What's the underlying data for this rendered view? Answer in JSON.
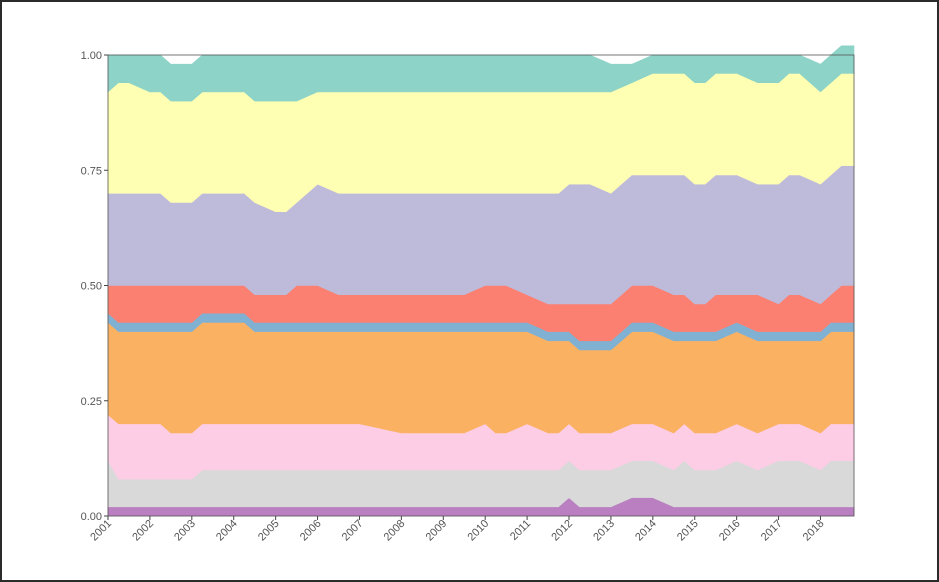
{
  "chart_data": {
    "type": "area",
    "stacked": true,
    "normalized": true,
    "xlabel": "",
    "ylabel": "",
    "title": "",
    "grid": false,
    "legend": "none",
    "x": [
      2001.0,
      2001.25,
      2001.5,
      2002.0,
      2002.25,
      2002.5,
      2003.0,
      2003.25,
      2003.5,
      2004.0,
      2004.25,
      2004.5,
      2005.0,
      2005.25,
      2005.5,
      2006.0,
      2006.5,
      2007.0,
      2008.0,
      2009.0,
      2009.25,
      2009.5,
      2010.0,
      2010.25,
      2010.5,
      2011.0,
      2011.5,
      2011.75,
      2012.0,
      2012.25,
      2012.5,
      2013.0,
      2013.5,
      2014.0,
      2014.5,
      2014.75,
      2015.0,
      2015.25,
      2015.5,
      2016.0,
      2016.5,
      2017.0,
      2017.25,
      2017.5,
      2018.0,
      2018.25,
      2018.5
    ],
    "xlim": [
      2001,
      2018.8
    ],
    "ylim": [
      0,
      1
    ],
    "yticks": [
      "0.00",
      "0.25",
      "0.50",
      "0.75",
      "1.00"
    ],
    "xticks": [
      "2001",
      "2002",
      "2003",
      "2004",
      "2005",
      "2006",
      "2007",
      "2008",
      "2009",
      "2010",
      "2011",
      "2012",
      "2013",
      "2014",
      "2015",
      "2016",
      "2017",
      "2018"
    ],
    "series": [
      {
        "color": "#b97fc0",
        "values": [
          0.02,
          0.02,
          0.02,
          0.02,
          0.02,
          0.02,
          0.02,
          0.02,
          0.02,
          0.02,
          0.02,
          0.02,
          0.02,
          0.02,
          0.02,
          0.02,
          0.02,
          0.02,
          0.02,
          0.02,
          0.02,
          0.02,
          0.02,
          0.02,
          0.02,
          0.02,
          0.02,
          0.02,
          0.04,
          0.02,
          0.02,
          0.02,
          0.04,
          0.04,
          0.02,
          0.02,
          0.02,
          0.02,
          0.02,
          0.02,
          0.02,
          0.02,
          0.02,
          0.02,
          0.02,
          0.02,
          0.02
        ]
      },
      {
        "color": "#d9d9d9",
        "values": [
          0.1,
          0.06,
          0.06,
          0.06,
          0.06,
          0.06,
          0.06,
          0.08,
          0.08,
          0.08,
          0.08,
          0.08,
          0.08,
          0.08,
          0.08,
          0.08,
          0.08,
          0.08,
          0.08,
          0.08,
          0.08,
          0.08,
          0.08,
          0.08,
          0.08,
          0.08,
          0.08,
          0.08,
          0.08,
          0.08,
          0.08,
          0.08,
          0.08,
          0.08,
          0.08,
          0.1,
          0.08,
          0.08,
          0.08,
          0.1,
          0.08,
          0.1,
          0.1,
          0.1,
          0.08,
          0.1,
          0.1
        ]
      },
      {
        "color": "#fccde5",
        "values": [
          0.1,
          0.12,
          0.12,
          0.12,
          0.12,
          0.1,
          0.1,
          0.1,
          0.1,
          0.1,
          0.1,
          0.1,
          0.1,
          0.1,
          0.1,
          0.1,
          0.1,
          0.1,
          0.08,
          0.08,
          0.08,
          0.08,
          0.1,
          0.08,
          0.08,
          0.1,
          0.08,
          0.08,
          0.08,
          0.08,
          0.08,
          0.08,
          0.08,
          0.08,
          0.08,
          0.08,
          0.08,
          0.08,
          0.08,
          0.08,
          0.08,
          0.08,
          0.08,
          0.08,
          0.08,
          0.08,
          0.08
        ]
      },
      {
        "color": "#fbb162",
        "values": [
          0.2,
          0.2,
          0.2,
          0.2,
          0.2,
          0.22,
          0.22,
          0.22,
          0.22,
          0.22,
          0.22,
          0.2,
          0.2,
          0.2,
          0.2,
          0.2,
          0.2,
          0.2,
          0.22,
          0.22,
          0.22,
          0.22,
          0.2,
          0.22,
          0.22,
          0.2,
          0.2,
          0.2,
          0.18,
          0.18,
          0.18,
          0.18,
          0.2,
          0.2,
          0.2,
          0.18,
          0.2,
          0.2,
          0.2,
          0.2,
          0.2,
          0.18,
          0.18,
          0.18,
          0.2,
          0.2,
          0.2
        ]
      },
      {
        "color": "#80b1d3",
        "values": [
          0.02,
          0.02,
          0.02,
          0.02,
          0.02,
          0.02,
          0.02,
          0.02,
          0.02,
          0.02,
          0.02,
          0.02,
          0.02,
          0.02,
          0.02,
          0.02,
          0.02,
          0.02,
          0.02,
          0.02,
          0.02,
          0.02,
          0.02,
          0.02,
          0.02,
          0.02,
          0.02,
          0.02,
          0.02,
          0.02,
          0.02,
          0.02,
          0.02,
          0.02,
          0.02,
          0.02,
          0.02,
          0.02,
          0.02,
          0.02,
          0.02,
          0.02,
          0.02,
          0.02,
          0.02,
          0.02,
          0.02
        ]
      },
      {
        "color": "#fb8072",
        "values": [
          0.06,
          0.08,
          0.08,
          0.08,
          0.08,
          0.08,
          0.08,
          0.06,
          0.06,
          0.06,
          0.06,
          0.06,
          0.06,
          0.06,
          0.08,
          0.08,
          0.06,
          0.06,
          0.06,
          0.06,
          0.06,
          0.06,
          0.08,
          0.08,
          0.08,
          0.06,
          0.06,
          0.06,
          0.06,
          0.08,
          0.08,
          0.08,
          0.08,
          0.08,
          0.08,
          0.08,
          0.06,
          0.06,
          0.08,
          0.06,
          0.08,
          0.06,
          0.08,
          0.08,
          0.06,
          0.06,
          0.08
        ]
      },
      {
        "color": "#bebada",
        "values": [
          0.2,
          0.2,
          0.2,
          0.2,
          0.2,
          0.18,
          0.18,
          0.2,
          0.2,
          0.2,
          0.2,
          0.2,
          0.18,
          0.18,
          0.18,
          0.22,
          0.22,
          0.22,
          0.22,
          0.22,
          0.22,
          0.22,
          0.2,
          0.2,
          0.2,
          0.22,
          0.24,
          0.24,
          0.26,
          0.26,
          0.26,
          0.24,
          0.24,
          0.24,
          0.26,
          0.26,
          0.26,
          0.26,
          0.26,
          0.26,
          0.24,
          0.26,
          0.26,
          0.26,
          0.26,
          0.26,
          0.26
        ]
      },
      {
        "color": "#ffffb3",
        "values": [
          0.22,
          0.24,
          0.24,
          0.22,
          0.22,
          0.22,
          0.22,
          0.22,
          0.22,
          0.22,
          0.22,
          0.22,
          0.24,
          0.24,
          0.22,
          0.2,
          0.22,
          0.22,
          0.22,
          0.22,
          0.22,
          0.22,
          0.22,
          0.22,
          0.22,
          0.22,
          0.22,
          0.22,
          0.2,
          0.2,
          0.2,
          0.22,
          0.2,
          0.22,
          0.22,
          0.22,
          0.22,
          0.22,
          0.22,
          0.22,
          0.22,
          0.22,
          0.22,
          0.22,
          0.2,
          0.2,
          0.2
        ]
      },
      {
        "color": "#8dd3c7",
        "values": [
          0.08,
          0.06,
          0.06,
          0.08,
          0.08,
          0.08,
          0.08,
          0.08,
          0.08,
          0.08,
          0.08,
          0.1,
          0.1,
          0.1,
          0.1,
          0.08,
          0.08,
          0.08,
          0.08,
          0.08,
          0.08,
          0.08,
          0.08,
          0.08,
          0.08,
          0.08,
          0.08,
          0.08,
          0.08,
          0.08,
          0.08,
          0.06,
          0.04,
          0.04,
          0.04,
          0.04,
          0.06,
          0.06,
          0.04,
          0.04,
          0.06,
          0.06,
          0.04,
          0.04,
          0.06,
          0.06,
          0.06
        ]
      }
    ]
  }
}
